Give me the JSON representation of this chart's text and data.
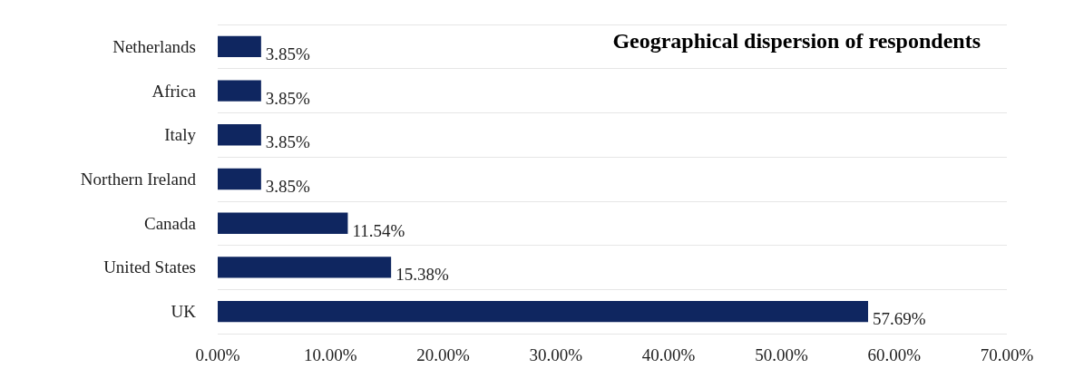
{
  "chart_data": {
    "type": "bar",
    "orientation": "horizontal",
    "title": "Geographical dispersion of respondents",
    "categories": [
      "Netherlands",
      "Africa",
      "Italy",
      "Northern Ireland",
      "Canada",
      "United States",
      "UK"
    ],
    "values": [
      3.85,
      3.85,
      3.85,
      3.85,
      11.54,
      15.38,
      57.69
    ],
    "value_labels": [
      "3.85%",
      "3.85%",
      "3.85%",
      "3.85%",
      "11.54%",
      "15.38%",
      "57.69%"
    ],
    "color": "#0f2660",
    "xlim": [
      0,
      70
    ],
    "xticks": [
      {
        "value": 0,
        "label": "0.00%"
      },
      {
        "value": 10,
        "label": "10.00%"
      },
      {
        "value": 20,
        "label": "20.00%"
      },
      {
        "value": 30,
        "label": "30.00%"
      },
      {
        "value": 40,
        "label": "40.00%"
      },
      {
        "value": 50,
        "label": "50.00%"
      },
      {
        "value": 60,
        "label": "60.00%"
      },
      {
        "value": 70,
        "label": "70.00%"
      }
    ],
    "grid": "y"
  }
}
